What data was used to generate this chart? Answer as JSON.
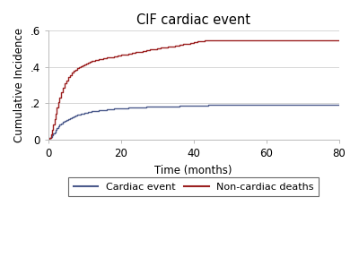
{
  "title": "CIF cardiac event",
  "xlabel": "Time (months)",
  "ylabel": "Cumulative Incidence",
  "xlim": [
    0,
    80
  ],
  "ylim": [
    0,
    0.6
  ],
  "xticks": [
    0,
    20,
    40,
    60,
    80
  ],
  "yticks": [
    0,
    0.2,
    0.4,
    0.6
  ],
  "ytick_labels": [
    "0",
    ".2",
    ".4",
    ".6"
  ],
  "cardiac_color": "#4c5b8c",
  "noncardiac_color": "#9b2020",
  "bg_color": "#ffffff",
  "legend_labels": [
    "Cardiac event",
    "Non-cardiac deaths"
  ],
  "cardiac_x": [
    0,
    0.3,
    0.7,
    1.0,
    1.3,
    1.7,
    2.0,
    2.3,
    2.7,
    3.0,
    3.5,
    4.0,
    4.5,
    5.0,
    5.5,
    6.0,
    6.5,
    7.0,
    7.5,
    8.0,
    8.5,
    9.0,
    9.5,
    10.0,
    10.5,
    11.0,
    12.0,
    13.0,
    14.0,
    15.0,
    16.0,
    17.0,
    18.0,
    19.0,
    20.0,
    21.0,
    22.0,
    23.0,
    24.0,
    25.0,
    26.0,
    27.0,
    28.0,
    30.0,
    32.0,
    34.0,
    36.0,
    38.0,
    40.0,
    42.0,
    44.0,
    58.0,
    80.0
  ],
  "cardiac_y": [
    0,
    0.008,
    0.016,
    0.025,
    0.034,
    0.042,
    0.052,
    0.062,
    0.072,
    0.082,
    0.09,
    0.098,
    0.105,
    0.11,
    0.115,
    0.12,
    0.124,
    0.128,
    0.133,
    0.137,
    0.14,
    0.143,
    0.145,
    0.148,
    0.15,
    0.153,
    0.156,
    0.159,
    0.162,
    0.164,
    0.166,
    0.168,
    0.17,
    0.172,
    0.173,
    0.174,
    0.175,
    0.176,
    0.177,
    0.178,
    0.179,
    0.18,
    0.181,
    0.182,
    0.183,
    0.184,
    0.185,
    0.186,
    0.187,
    0.188,
    0.19,
    0.19,
    0.19
  ],
  "noncardiac_x": [
    0,
    0.3,
    0.7,
    1.0,
    1.3,
    1.7,
    2.0,
    2.3,
    2.7,
    3.0,
    3.5,
    4.0,
    4.5,
    5.0,
    5.5,
    6.0,
    6.5,
    7.0,
    7.5,
    8.0,
    8.5,
    9.0,
    9.5,
    10.0,
    10.5,
    11.0,
    11.5,
    12.0,
    13.0,
    14.0,
    15.0,
    16.0,
    17.0,
    18.0,
    19.0,
    20.0,
    21.0,
    22.0,
    23.0,
    24.0,
    25.0,
    26.0,
    27.0,
    28.0,
    29.0,
    30.0,
    31.0,
    32.0,
    33.0,
    34.0,
    35.0,
    36.0,
    37.0,
    38.0,
    39.0,
    40.0,
    41.0,
    42.0,
    43.0,
    58.0,
    80.0
  ],
  "noncardiac_y": [
    0,
    0.012,
    0.03,
    0.055,
    0.085,
    0.115,
    0.145,
    0.175,
    0.205,
    0.23,
    0.26,
    0.285,
    0.308,
    0.325,
    0.342,
    0.356,
    0.368,
    0.378,
    0.386,
    0.393,
    0.399,
    0.405,
    0.41,
    0.415,
    0.42,
    0.425,
    0.428,
    0.432,
    0.438,
    0.443,
    0.447,
    0.45,
    0.454,
    0.458,
    0.462,
    0.465,
    0.468,
    0.472,
    0.476,
    0.48,
    0.484,
    0.488,
    0.492,
    0.496,
    0.499,
    0.502,
    0.504,
    0.507,
    0.51,
    0.513,
    0.516,
    0.52,
    0.524,
    0.528,
    0.532,
    0.536,
    0.54,
    0.543,
    0.545,
    0.545,
    0.545
  ]
}
